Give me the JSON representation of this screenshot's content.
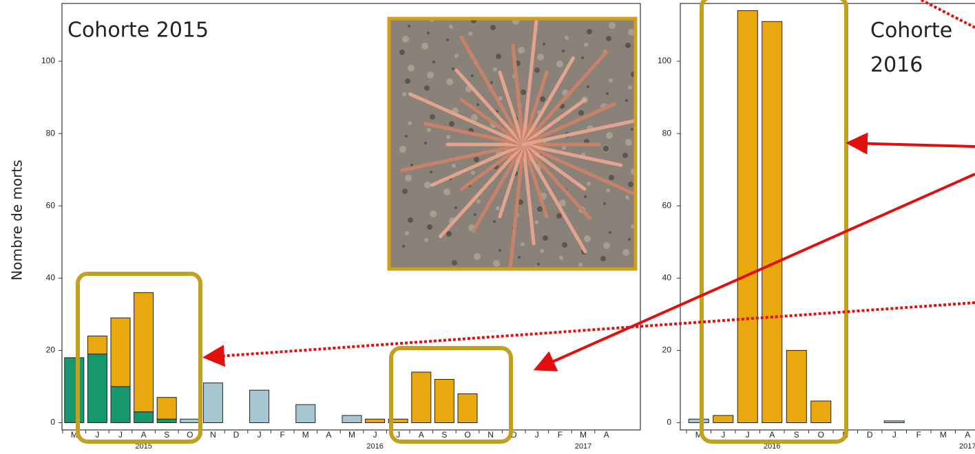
{
  "chart_data": [
    {
      "type": "bar",
      "title": "Cohorte 2015",
      "y_label": "Nombre de morts",
      "categories": [
        "M",
        "J",
        "J",
        "A",
        "S",
        "O",
        "N",
        "D",
        "J",
        "F",
        "M",
        "A",
        "M",
        "J",
        "J",
        "A",
        "S",
        "O",
        "N",
        "D",
        "J",
        "F",
        "M",
        "A"
      ],
      "years": [
        "2015",
        "2016",
        "2017"
      ],
      "series": [
        {
          "color": "#17976e",
          "values": [
            18,
            19,
            10,
            3,
            1,
            null,
            null,
            null,
            null,
            null,
            null,
            null,
            null,
            null,
            null,
            null,
            null,
            null,
            null,
            null,
            null,
            null,
            null,
            null
          ]
        },
        {
          "color": "#e9a80e",
          "values": [
            null,
            5,
            19,
            33,
            6,
            null,
            null,
            null,
            null,
            null,
            null,
            null,
            null,
            1,
            1,
            14,
            12,
            8,
            null,
            null,
            null,
            null,
            null,
            null
          ]
        },
        {
          "color": "#a6c6d1",
          "values": [
            null,
            null,
            null,
            null,
            null,
            1,
            11,
            null,
            9,
            null,
            5,
            null,
            2,
            null,
            null,
            null,
            null,
            null,
            null,
            null,
            null,
            null,
            null,
            null
          ]
        }
      ],
      "ylim": [
        -2,
        116
      ],
      "yticks": [
        0,
        20,
        40,
        60,
        80,
        100
      ]
    },
    {
      "type": "bar",
      "title": "Cohorte 2016",
      "categories": [
        "M",
        "J",
        "J",
        "A",
        "S",
        "O",
        "N",
        "D",
        "J",
        "F",
        "M",
        "A"
      ],
      "years": [
        "2016",
        "2017"
      ],
      "series": [
        {
          "color": "#e9a80e",
          "values": [
            null,
            2,
            114,
            111,
            20,
            6,
            null,
            null,
            null,
            null,
            null,
            null
          ]
        },
        {
          "color": "#a6c6d1",
          "values": [
            1,
            null,
            null,
            null,
            null,
            null,
            null,
            null,
            0.5,
            null,
            null,
            null
          ]
        }
      ],
      "ylim": [
        -2,
        116
      ],
      "yticks": [
        0,
        20,
        40,
        60,
        80,
        100
      ]
    }
  ]
}
